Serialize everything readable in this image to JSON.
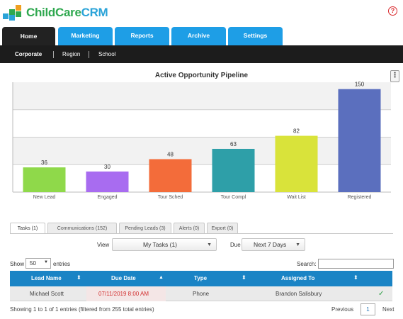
{
  "brand": {
    "part1": "ChildCare",
    "part2": "CRM"
  },
  "help_symbol": "?",
  "main_tabs": [
    "Home",
    "Marketing",
    "Reports",
    "Archive",
    "Settings"
  ],
  "active_tab": "Home",
  "sub_nav": [
    "Corporate",
    "Region",
    "School"
  ],
  "chart_menu_symbol": "⋮",
  "chart_data": {
    "type": "bar",
    "title": "Active Opportunity Pipeline",
    "categories": [
      "New Lead",
      "Engaged",
      "Tour Sched",
      "Tour Compl",
      "Wait List",
      "Registered"
    ],
    "values": [
      36,
      30,
      48,
      63,
      82,
      150
    ],
    "colors": [
      "#8fd94a",
      "#a86cf0",
      "#f36c3a",
      "#2e9fa8",
      "#d9e33a",
      "#5b6fbe"
    ],
    "ylim": [
      0,
      160
    ],
    "grid": true,
    "legend": "none",
    "xlabel": "",
    "ylabel": ""
  },
  "panel_tabs": [
    "Tasks (1)",
    "Communications (152)",
    "Pending Leads (3)",
    "Alerts (0)",
    "Export (0)"
  ],
  "filters": {
    "view_label": "View",
    "view_value": "My Tasks (1)",
    "due_label": "Due",
    "due_value": "Next 7 Days"
  },
  "length_control": {
    "show_label": "Show",
    "value": "50",
    "entries_label": "entries"
  },
  "search_label": "Search:",
  "table": {
    "columns": [
      "Lead Name",
      "Due Date",
      "Type",
      "Assigned To"
    ],
    "rows": [
      {
        "lead_name": "Michael Scott",
        "due_date": "07/11/2019 8:00 AM",
        "type": "Phone",
        "assigned_to": "Brandon Salisbury",
        "done": "✓"
      }
    ]
  },
  "info_text": "Showing 1 to 1 of 1 entries (filtered from 255 total entries)",
  "pagination": {
    "previous": "Previous",
    "current": "1",
    "next": "Next"
  }
}
